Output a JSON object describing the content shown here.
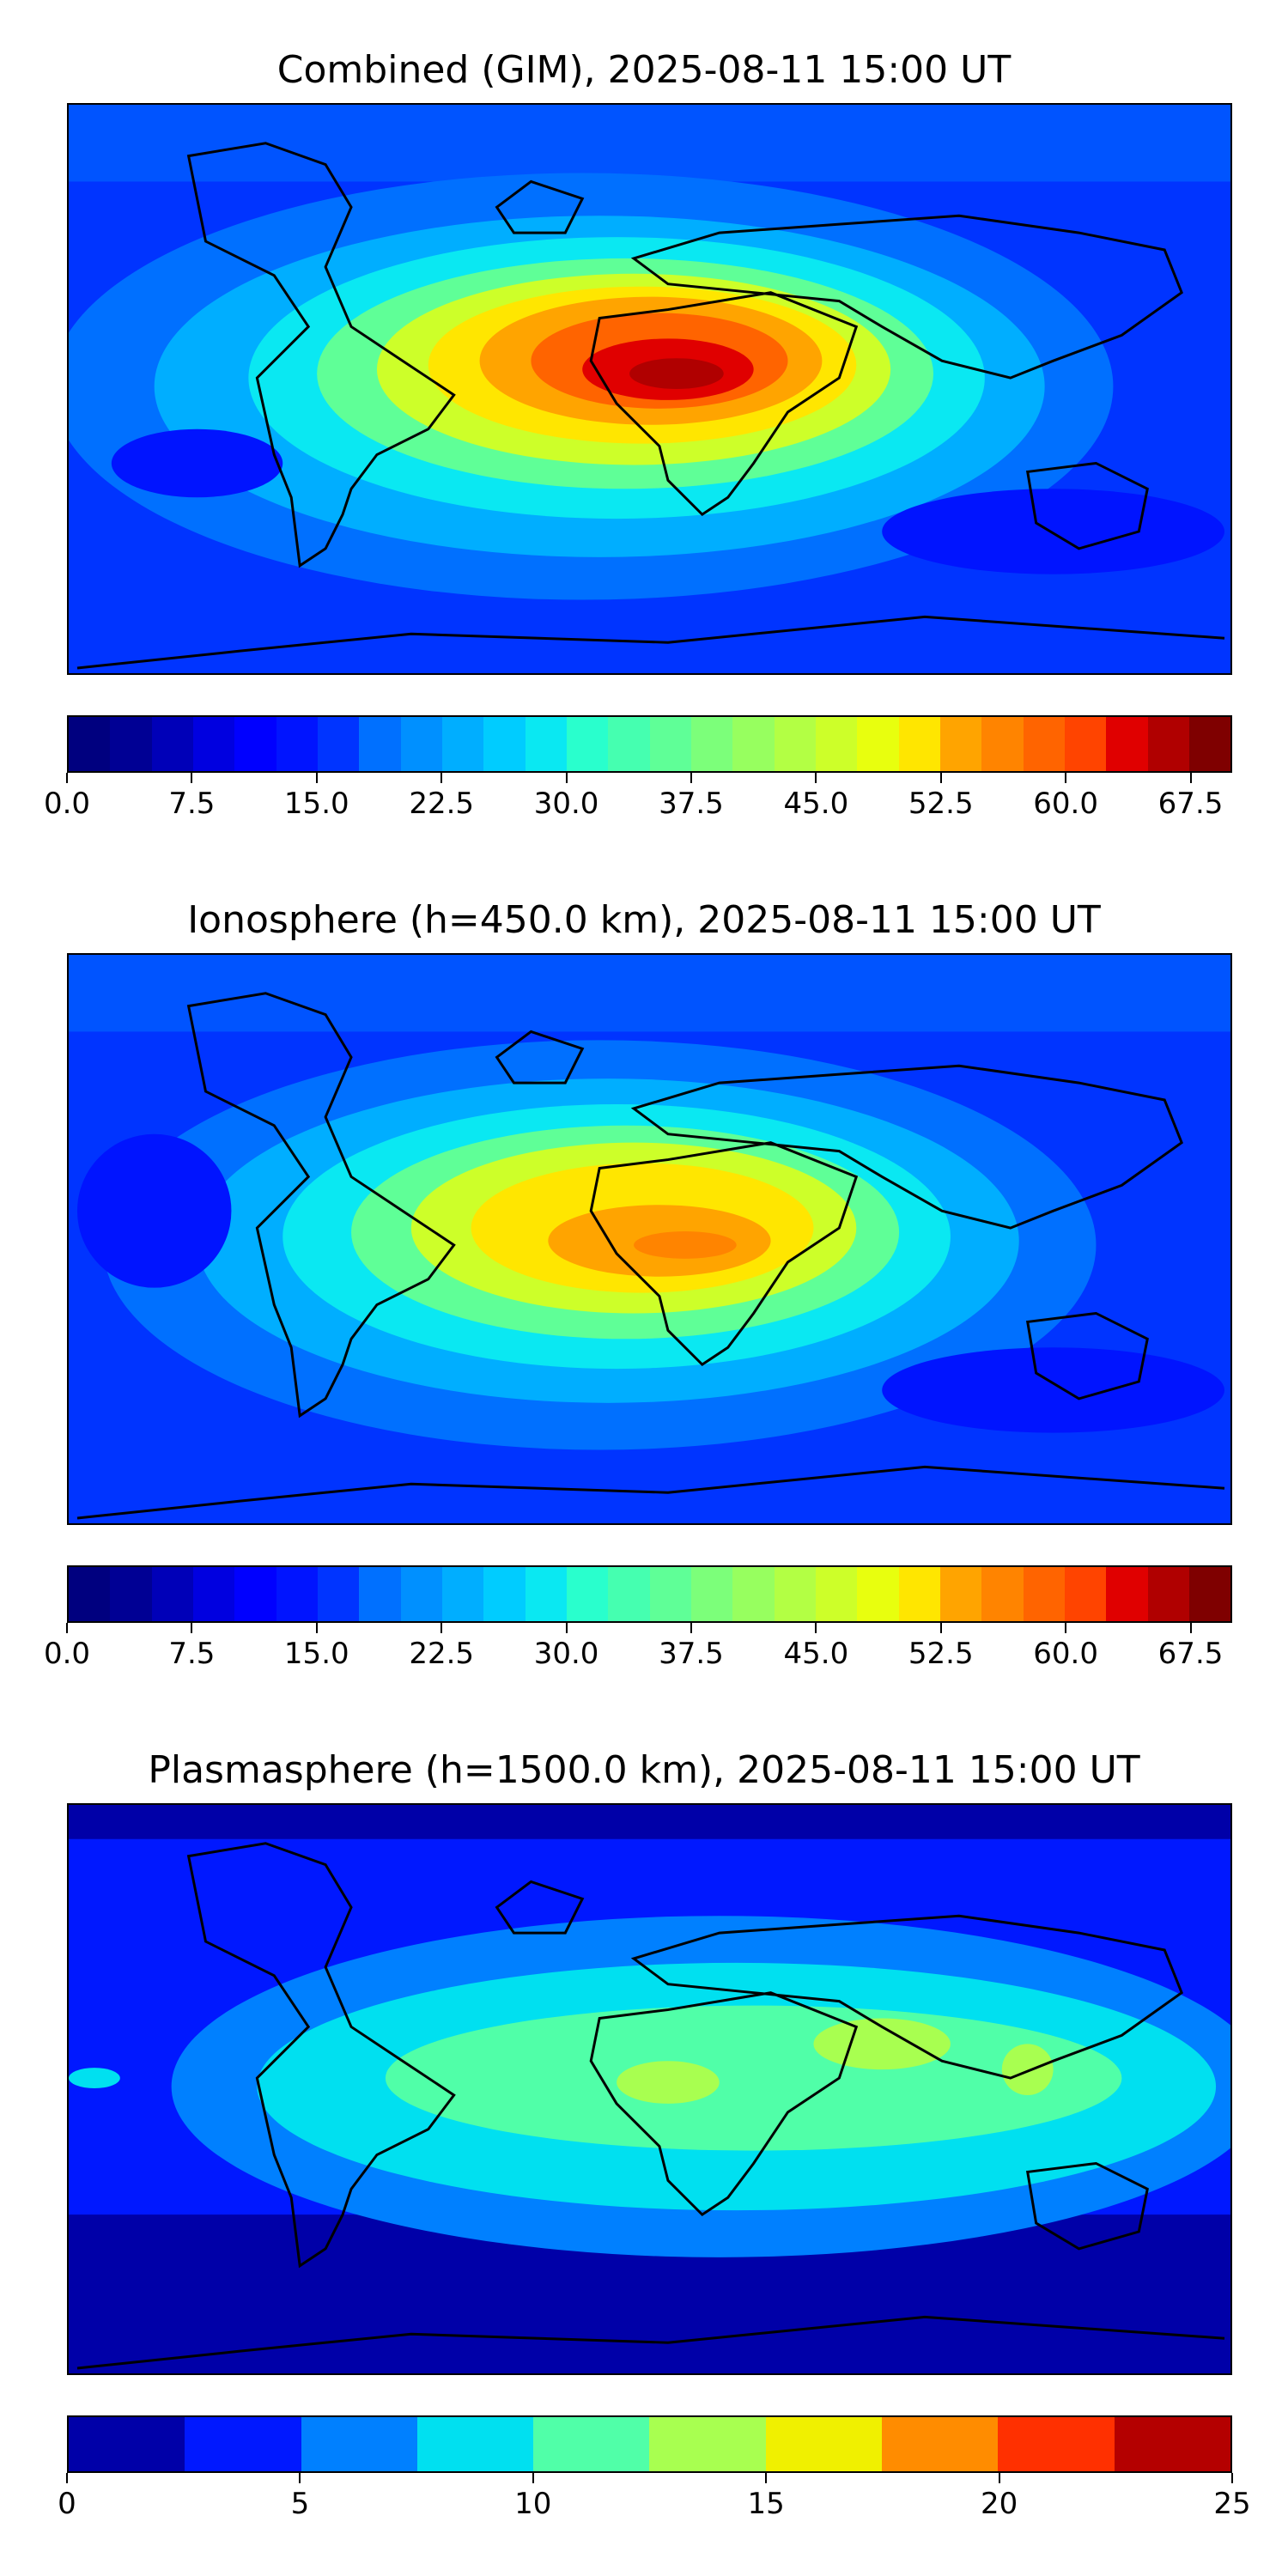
{
  "panels": [
    {
      "title": "Combined (GIM), 2025-08-11 15:00 UT",
      "colorbar": {
        "min": 0.0,
        "max": 70.0,
        "levels": 28,
        "tick_labels": [
          "0.0",
          "7.5",
          "15.0",
          "22.5",
          "30.0",
          "37.5",
          "45.0",
          "52.5",
          "60.0",
          "67.5"
        ],
        "colors": [
          "#00007f",
          "#000094",
          "#0000b8",
          "#0000e0",
          "#0000ff",
          "#0014ff",
          "#0034ff",
          "#0054ff",
          "#0070ff",
          "#0090ff",
          "#00aeff",
          "#00ccff",
          "#0ae8f2",
          "#29ffcd",
          "#45ffb0",
          "#5fff97",
          "#7cff7a",
          "#97ff5f",
          "#b3ff44",
          "#cdff29",
          "#e8ff0e",
          "#ffe600",
          "#ffc400",
          "#ffa400",
          "#ff8400",
          "#ff6400",
          "#ff4400",
          "#e00000",
          "#b00000",
          "#7f0000"
        ]
      }
    },
    {
      "title": "Ionosphere  (h=450.0 km), 2025-08-11 15:00 UT",
      "colorbar": {
        "min": 0.0,
        "max": 70.0,
        "levels": 28,
        "tick_labels": [
          "0.0",
          "7.5",
          "15.0",
          "22.5",
          "30.0",
          "37.5",
          "45.0",
          "52.5",
          "60.0",
          "67.5"
        ],
        "colors": [
          "#00007f",
          "#000094",
          "#0000b8",
          "#0000e0",
          "#0000ff",
          "#0014ff",
          "#0034ff",
          "#0054ff",
          "#0070ff",
          "#0090ff",
          "#00aeff",
          "#00ccff",
          "#0ae8f2",
          "#29ffcd",
          "#45ffb0",
          "#5fff97",
          "#7cff7a",
          "#97ff5f",
          "#b3ff44",
          "#cdff29",
          "#e8ff0e",
          "#ffe600",
          "#ffc400",
          "#ffa400",
          "#ff8400",
          "#ff6400",
          "#ff4400",
          "#e00000",
          "#b00000",
          "#7f0000"
        ]
      }
    },
    {
      "title": "Plasmasphere (h=1500.0 km), 2025-08-11 15:00 UT",
      "colorbar": {
        "min": 0,
        "max": 25,
        "levels": 10,
        "tick_labels": [
          "0",
          "5",
          "10",
          "15",
          "20",
          "25"
        ],
        "colors": [
          "#0000a8",
          "#0018ff",
          "#0080ff",
          "#00e0f0",
          "#50ffa8",
          "#a8ff50",
          "#f0f000",
          "#ff8c00",
          "#ff3000",
          "#b40000"
        ]
      }
    }
  ]
}
